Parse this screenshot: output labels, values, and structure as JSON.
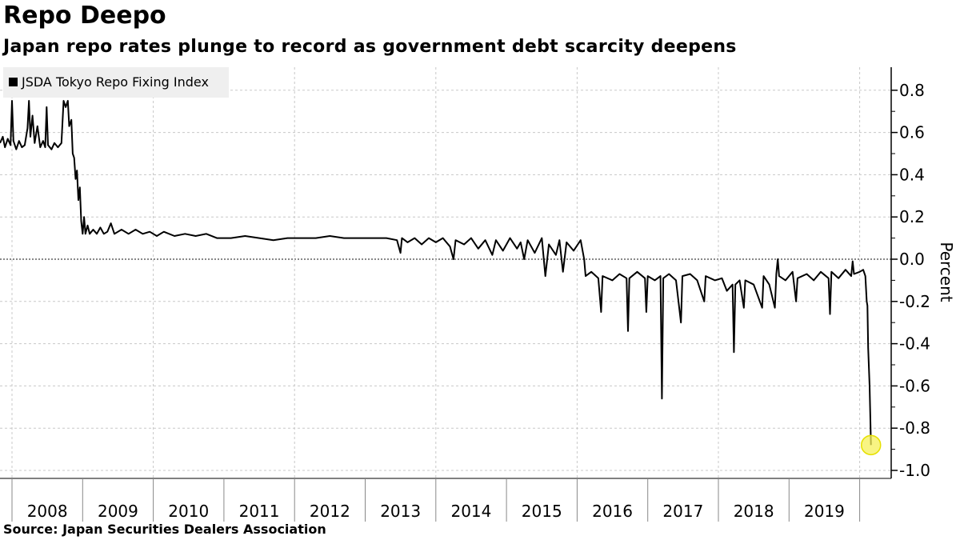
{
  "title": "Repo Deepo",
  "subtitle": "Japan repo rates plunge to record as government debt scarcity deepens",
  "source": "Source: Japan Securities Dealers Association",
  "chart_data": {
    "type": "line",
    "title": "Repo Deepo",
    "ylabel": "Percent",
    "xlabel": "",
    "ylim": [
      -1.05,
      0.9
    ],
    "xlim": [
      2007.83,
      2020.45
    ],
    "yticks": [
      0.8,
      0.6,
      0.4,
      0.2,
      0.0,
      -0.2,
      -0.4,
      -0.6,
      -0.8,
      -1.0
    ],
    "ytick_labels": [
      "0.8",
      "0.6",
      "0.4",
      "0.2",
      "0.0",
      "-0.2",
      "-0.4",
      "-0.6",
      "-0.8",
      "-1.0"
    ],
    "xtick_labels": [
      "2008",
      "2009",
      "2010",
      "2011",
      "2012",
      "2013",
      "2014",
      "2015",
      "2016",
      "2017",
      "2018",
      "2019"
    ],
    "grid": true,
    "legend": "top-left",
    "line_color": "#000000",
    "highlight_color": "#f5f05a",
    "series": [
      {
        "name": "JSDA Tokyo Repo Fixing Index",
        "points": [
          [
            2007.83,
            0.55
          ],
          [
            2007.87,
            0.58
          ],
          [
            2007.9,
            0.53
          ],
          [
            2007.94,
            0.57
          ],
          [
            2007.98,
            0.54
          ],
          [
            2008.0,
            0.75
          ],
          [
            2008.02,
            0.56
          ],
          [
            2008.06,
            0.52
          ],
          [
            2008.1,
            0.56
          ],
          [
            2008.14,
            0.53
          ],
          [
            2008.18,
            0.54
          ],
          [
            2008.22,
            0.62
          ],
          [
            2008.24,
            0.75
          ],
          [
            2008.26,
            0.58
          ],
          [
            2008.29,
            0.68
          ],
          [
            2008.32,
            0.55
          ],
          [
            2008.36,
            0.63
          ],
          [
            2008.4,
            0.53
          ],
          [
            2008.44,
            0.56
          ],
          [
            2008.47,
            0.53
          ],
          [
            2008.49,
            0.72
          ],
          [
            2008.51,
            0.54
          ],
          [
            2008.56,
            0.52
          ],
          [
            2008.6,
            0.55
          ],
          [
            2008.65,
            0.53
          ],
          [
            2008.7,
            0.55
          ],
          [
            2008.73,
            0.75
          ],
          [
            2008.76,
            0.72
          ],
          [
            2008.79,
            0.75
          ],
          [
            2008.81,
            0.63
          ],
          [
            2008.84,
            0.66
          ],
          [
            2008.86,
            0.5
          ],
          [
            2008.88,
            0.48
          ],
          [
            2008.9,
            0.38
          ],
          [
            2008.92,
            0.42
          ],
          [
            2008.94,
            0.28
          ],
          [
            2008.96,
            0.34
          ],
          [
            2008.98,
            0.18
          ],
          [
            2009.0,
            0.12
          ],
          [
            2009.02,
            0.2
          ],
          [
            2009.04,
            0.12
          ],
          [
            2009.07,
            0.16
          ],
          [
            2009.1,
            0.12
          ],
          [
            2009.15,
            0.14
          ],
          [
            2009.2,
            0.12
          ],
          [
            2009.25,
            0.15
          ],
          [
            2009.3,
            0.12
          ],
          [
            2009.35,
            0.13
          ],
          [
            2009.4,
            0.17
          ],
          [
            2009.45,
            0.12
          ],
          [
            2009.55,
            0.14
          ],
          [
            2009.65,
            0.12
          ],
          [
            2009.75,
            0.14
          ],
          [
            2009.85,
            0.12
          ],
          [
            2009.95,
            0.13
          ],
          [
            2010.05,
            0.11
          ],
          [
            2010.15,
            0.13
          ],
          [
            2010.3,
            0.11
          ],
          [
            2010.45,
            0.12
          ],
          [
            2010.6,
            0.11
          ],
          [
            2010.75,
            0.12
          ],
          [
            2010.9,
            0.1
          ],
          [
            2011.1,
            0.1
          ],
          [
            2011.3,
            0.11
          ],
          [
            2011.5,
            0.1
          ],
          [
            2011.7,
            0.09
          ],
          [
            2011.9,
            0.1
          ],
          [
            2012.1,
            0.1
          ],
          [
            2012.3,
            0.1
          ],
          [
            2012.5,
            0.11
          ],
          [
            2012.7,
            0.1
          ],
          [
            2012.9,
            0.1
          ],
          [
            2013.1,
            0.1
          ],
          [
            2013.3,
            0.1
          ],
          [
            2013.45,
            0.09
          ],
          [
            2013.5,
            0.03
          ],
          [
            2013.52,
            0.1
          ],
          [
            2013.6,
            0.08
          ],
          [
            2013.7,
            0.1
          ],
          [
            2013.8,
            0.07
          ],
          [
            2013.9,
            0.1
          ],
          [
            2014.0,
            0.08
          ],
          [
            2014.1,
            0.1
          ],
          [
            2014.2,
            0.06
          ],
          [
            2014.25,
            0.0
          ],
          [
            2014.28,
            0.09
          ],
          [
            2014.4,
            0.07
          ],
          [
            2014.5,
            0.1
          ],
          [
            2014.6,
            0.05
          ],
          [
            2014.7,
            0.09
          ],
          [
            2014.8,
            0.02
          ],
          [
            2014.85,
            0.09
          ],
          [
            2014.95,
            0.04
          ],
          [
            2015.05,
            0.1
          ],
          [
            2015.15,
            0.05
          ],
          [
            2015.2,
            0.08
          ],
          [
            2015.25,
            0.0
          ],
          [
            2015.3,
            0.09
          ],
          [
            2015.4,
            0.03
          ],
          [
            2015.5,
            0.1
          ],
          [
            2015.55,
            -0.08
          ],
          [
            2015.6,
            0.07
          ],
          [
            2015.7,
            0.02
          ],
          [
            2015.75,
            0.09
          ],
          [
            2015.8,
            -0.06
          ],
          [
            2015.85,
            0.08
          ],
          [
            2015.95,
            0.04
          ],
          [
            2016.05,
            0.09
          ],
          [
            2016.1,
            0.0
          ],
          [
            2016.12,
            -0.08
          ],
          [
            2016.2,
            -0.06
          ],
          [
            2016.3,
            -0.09
          ],
          [
            2016.34,
            -0.25
          ],
          [
            2016.36,
            -0.08
          ],
          [
            2016.5,
            -0.1
          ],
          [
            2016.6,
            -0.07
          ],
          [
            2016.7,
            -0.09
          ],
          [
            2016.72,
            -0.34
          ],
          [
            2016.74,
            -0.09
          ],
          [
            2016.85,
            -0.06
          ],
          [
            2016.96,
            -0.09
          ],
          [
            2016.98,
            -0.25
          ],
          [
            2017.0,
            -0.08
          ],
          [
            2017.1,
            -0.1
          ],
          [
            2017.18,
            -0.08
          ],
          [
            2017.2,
            -0.66
          ],
          [
            2017.22,
            -0.09
          ],
          [
            2017.3,
            -0.07
          ],
          [
            2017.4,
            -0.1
          ],
          [
            2017.47,
            -0.3
          ],
          [
            2017.49,
            -0.08
          ],
          [
            2017.6,
            -0.07
          ],
          [
            2017.7,
            -0.1
          ],
          [
            2017.8,
            -0.2
          ],
          [
            2017.82,
            -0.08
          ],
          [
            2017.95,
            -0.1
          ],
          [
            2018.05,
            -0.09
          ],
          [
            2018.12,
            -0.15
          ],
          [
            2018.2,
            -0.12
          ],
          [
            2018.22,
            -0.44
          ],
          [
            2018.24,
            -0.12
          ],
          [
            2018.3,
            -0.1
          ],
          [
            2018.36,
            -0.23
          ],
          [
            2018.38,
            -0.1
          ],
          [
            2018.5,
            -0.12
          ],
          [
            2018.62,
            -0.23
          ],
          [
            2018.64,
            -0.08
          ],
          [
            2018.72,
            -0.12
          ],
          [
            2018.8,
            -0.23
          ],
          [
            2018.82,
            -0.07
          ],
          [
            2018.84,
            0.0
          ],
          [
            2018.86,
            -0.08
          ],
          [
            2018.95,
            -0.1
          ],
          [
            2019.05,
            -0.06
          ],
          [
            2019.1,
            -0.2
          ],
          [
            2019.12,
            -0.09
          ],
          [
            2019.25,
            -0.07
          ],
          [
            2019.35,
            -0.1
          ],
          [
            2019.45,
            -0.06
          ],
          [
            2019.56,
            -0.09
          ],
          [
            2019.58,
            -0.26
          ],
          [
            2019.6,
            -0.06
          ],
          [
            2019.7,
            -0.09
          ],
          [
            2019.8,
            -0.05
          ],
          [
            2019.88,
            -0.08
          ],
          [
            2019.9,
            -0.01
          ],
          [
            2019.92,
            -0.07
          ],
          [
            2020.0,
            -0.06
          ],
          [
            2020.05,
            -0.05
          ],
          [
            2020.08,
            -0.08
          ],
          [
            2020.1,
            -0.2
          ],
          [
            2020.11,
            -0.22
          ],
          [
            2020.12,
            -0.42
          ],
          [
            2020.14,
            -0.6
          ],
          [
            2020.16,
            -0.88
          ]
        ]
      }
    ]
  }
}
